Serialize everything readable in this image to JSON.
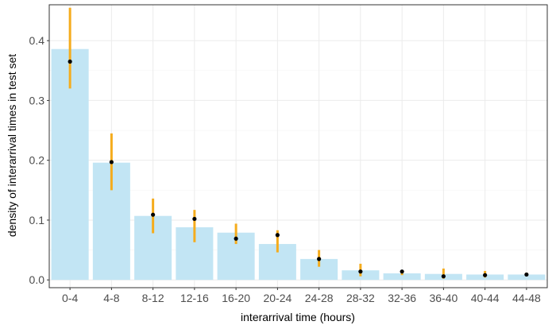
{
  "chart_data": {
    "type": "bar",
    "xlabel": "interarrival time (hours)",
    "ylabel": "density of interarrival times in test set",
    "categories": [
      "0-4",
      "4-8",
      "8-12",
      "12-16",
      "16-20",
      "20-24",
      "24-28",
      "28-32",
      "32-36",
      "36-40",
      "40-44",
      "44-48"
    ],
    "series": [
      {
        "kind": "bar",
        "values": [
          0.386,
          0.196,
          0.107,
          0.088,
          0.079,
          0.06,
          0.035,
          0.016,
          0.011,
          0.01,
          0.009,
          0.009
        ]
      },
      {
        "kind": "point-with-errorbar",
        "values": [
          0.365,
          0.197,
          0.109,
          0.102,
          0.069,
          0.075,
          0.035,
          0.014,
          0.014,
          0.006,
          0.008,
          0.009
        ],
        "lower": [
          0.32,
          0.15,
          0.078,
          0.063,
          0.06,
          0.046,
          0.022,
          0.006,
          0.008,
          0.002,
          0.004,
          0.006
        ],
        "upper": [
          0.455,
          0.245,
          0.136,
          0.117,
          0.094,
          0.083,
          0.05,
          0.027,
          0.016,
          0.019,
          0.015,
          0.012
        ]
      }
    ],
    "yticks": [
      0.0,
      0.1,
      0.2,
      0.3,
      0.4
    ],
    "ytick_labels": [
      "0.0",
      "0.1",
      "0.2",
      "0.3",
      "0.4"
    ],
    "ylim": [
      -0.013,
      0.46
    ],
    "grid": true,
    "legend": "none",
    "colors": {
      "bar": "#c2e5f4",
      "errorbar": "#f5ac1d",
      "point": "#000000",
      "panel_background": "#ffffff",
      "grid_major": "#ebebeb",
      "grid_minor": "#f5f5f5",
      "panel_border": "#333333"
    }
  }
}
